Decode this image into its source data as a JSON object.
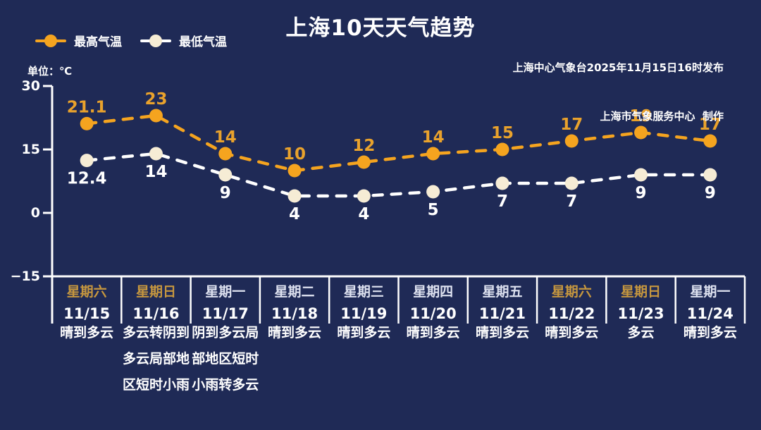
{
  "header": {
    "title": "上海10天天气趋势",
    "source_line1": "上海中心气象台2025年11月15日16时发布",
    "source_line2": "上海市气象服务中心  制作",
    "unit_label": "单位：℃"
  },
  "legend": {
    "high_label": "最高气温",
    "low_label": "最低气温"
  },
  "colors": {
    "background": "#1F2A56",
    "high": "#F5A41F",
    "high_label": "#E9A22C",
    "low_line": "#FFFFFF",
    "low_marker": "#F6ECD5",
    "text": "#FFFFFF",
    "weekend_day": "#C6973F",
    "weekday_day": "#DEE2F0",
    "axis": "#FFFFFF"
  },
  "chart_data": {
    "type": "line",
    "title": "上海10天天气趋势",
    "x": [
      "11/15",
      "11/16",
      "11/17",
      "11/18",
      "11/19",
      "11/20",
      "11/21",
      "11/22",
      "11/23",
      "11/24"
    ],
    "series": [
      {
        "name": "最高气温",
        "values": [
          21.1,
          23,
          14,
          10,
          12,
          14,
          15,
          17,
          19,
          17
        ]
      },
      {
        "name": "最低气温",
        "values": [
          12.4,
          14,
          9,
          4,
          4,
          5,
          7,
          7,
          9,
          9
        ]
      }
    ],
    "ylabel": "单位：℃",
    "yticks": [
      30,
      15,
      0,
      -15
    ],
    "ylim": [
      -15,
      30
    ],
    "grid": false,
    "legend_position": "top-left",
    "line_style": "dashed"
  },
  "days": [
    {
      "weekday": "星期六",
      "date": "11/15",
      "weather": "晴到多云",
      "weekend": true
    },
    {
      "weekday": "星期日",
      "date": "11/16",
      "weather": "多云转阴到多云局部地区短时小雨",
      "weekend": true
    },
    {
      "weekday": "星期一",
      "date": "11/17",
      "weather": "阴到多云局部地区短时小雨转多云",
      "weekend": false
    },
    {
      "weekday": "星期二",
      "date": "11/18",
      "weather": "晴到多云",
      "weekend": false
    },
    {
      "weekday": "星期三",
      "date": "11/19",
      "weather": "晴到多云",
      "weekend": false
    },
    {
      "weekday": "星期四",
      "date": "11/20",
      "weather": "晴到多云",
      "weekend": false
    },
    {
      "weekday": "星期五",
      "date": "11/21",
      "weather": "晴到多云",
      "weekend": false
    },
    {
      "weekday": "星期六",
      "date": "11/22",
      "weather": "晴到多云",
      "weekend": true
    },
    {
      "weekday": "星期日",
      "date": "11/23",
      "weather": "多云",
      "weekend": true
    },
    {
      "weekday": "星期一",
      "date": "11/24",
      "weather": "晴到多云",
      "weekend": false
    }
  ]
}
